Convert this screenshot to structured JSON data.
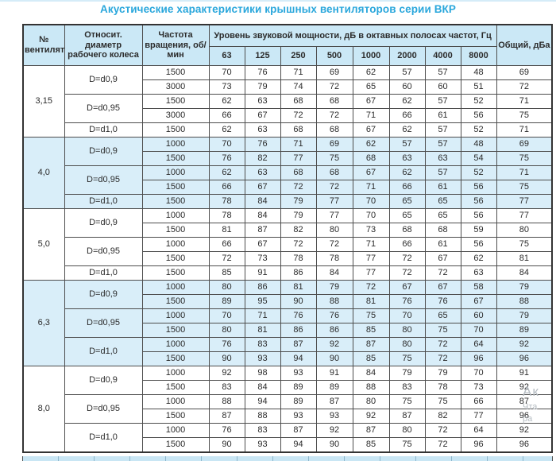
{
  "title": "Акустические характеристики крышных вентиляторов серии ВКР",
  "table": {
    "headers": {
      "fan": "№ вентилятора",
      "diameter": "Относит. диаметр рабочего колеса",
      "rpm": "Частота вращения, об/мин",
      "octave_group": "Уровень звуковой мощности, дБ в октавных полосах частот, Гц",
      "octaves": [
        "63",
        "125",
        "250",
        "500",
        "1000",
        "2000",
        "4000",
        "8000"
      ],
      "total": "Общий, дБа"
    },
    "sections": [
      {
        "fan": "3,15",
        "tint": false,
        "groups": [
          {
            "d": "D=d0,9",
            "rows": [
              {
                "rpm": "1500",
                "levels": [
                  70,
                  76,
                  71,
                  69,
                  62,
                  57,
                  57,
                  48
                ],
                "total": 69
              },
              {
                "rpm": "3000",
                "levels": [
                  73,
                  79,
                  74,
                  72,
                  65,
                  60,
                  60,
                  51
                ],
                "total": 72
              }
            ]
          },
          {
            "d": "D=d0,95",
            "rows": [
              {
                "rpm": "1500",
                "levels": [
                  62,
                  63,
                  68,
                  68,
                  67,
                  62,
                  57,
                  52
                ],
                "total": 71
              },
              {
                "rpm": "3000",
                "levels": [
                  66,
                  67,
                  72,
                  72,
                  71,
                  66,
                  61,
                  56
                ],
                "total": 75
              }
            ]
          },
          {
            "d": "D=d1,0",
            "rows": [
              {
                "rpm": "1500",
                "levels": [
                  62,
                  63,
                  68,
                  68,
                  67,
                  62,
                  57,
                  52
                ],
                "total": 71
              }
            ]
          }
        ]
      },
      {
        "fan": "4,0",
        "tint": true,
        "groups": [
          {
            "d": "D=d0,9",
            "rows": [
              {
                "rpm": "1000",
                "levels": [
                  70,
                  76,
                  71,
                  69,
                  62,
                  57,
                  57,
                  48
                ],
                "total": 69
              },
              {
                "rpm": "1500",
                "levels": [
                  76,
                  82,
                  77,
                  75,
                  68,
                  63,
                  63,
                  54
                ],
                "total": 75
              }
            ]
          },
          {
            "d": "D=d0,95",
            "rows": [
              {
                "rpm": "1000",
                "levels": [
                  62,
                  63,
                  68,
                  68,
                  67,
                  62,
                  57,
                  52
                ],
                "total": 71
              },
              {
                "rpm": "1500",
                "levels": [
                  66,
                  67,
                  72,
                  72,
                  71,
                  66,
                  61,
                  56
                ],
                "total": 75
              }
            ]
          },
          {
            "d": "D=d1,0",
            "rows": [
              {
                "rpm": "1500",
                "levels": [
                  78,
                  84,
                  79,
                  77,
                  70,
                  65,
                  65,
                  56
                ],
                "total": 77
              }
            ]
          }
        ]
      },
      {
        "fan": "5,0",
        "tint": false,
        "groups": [
          {
            "d": "D=d0,9",
            "rows": [
              {
                "rpm": "1000",
                "levels": [
                  78,
                  84,
                  79,
                  77,
                  70,
                  65,
                  65,
                  56
                ],
                "total": 77
              },
              {
                "rpm": "1500",
                "levels": [
                  81,
                  87,
                  82,
                  80,
                  73,
                  68,
                  68,
                  59
                ],
                "total": 80
              }
            ]
          },
          {
            "d": "D=d0,95",
            "rows": [
              {
                "rpm": "1000",
                "levels": [
                  66,
                  67,
                  72,
                  72,
                  71,
                  66,
                  61,
                  56
                ],
                "total": 75
              },
              {
                "rpm": "1500",
                "levels": [
                  72,
                  73,
                  78,
                  78,
                  77,
                  72,
                  67,
                  62
                ],
                "total": 81
              }
            ]
          },
          {
            "d": "D=d1,0",
            "rows": [
              {
                "rpm": "1500",
                "levels": [
                  85,
                  91,
                  86,
                  84,
                  77,
                  72,
                  72,
                  63
                ],
                "total": 84
              }
            ]
          }
        ]
      },
      {
        "fan": "6,3",
        "tint": true,
        "groups": [
          {
            "d": "D=d0,9",
            "rows": [
              {
                "rpm": "1000",
                "levels": [
                  80,
                  86,
                  81,
                  79,
                  72,
                  67,
                  67,
                  58
                ],
                "total": 79
              },
              {
                "rpm": "1500",
                "levels": [
                  89,
                  95,
                  90,
                  88,
                  81,
                  76,
                  76,
                  67
                ],
                "total": 88
              }
            ]
          },
          {
            "d": "D=d0,95",
            "rows": [
              {
                "rpm": "1000",
                "levels": [
                  70,
                  71,
                  76,
                  76,
                  75,
                  70,
                  65,
                  60
                ],
                "total": 79
              },
              {
                "rpm": "1500",
                "levels": [
                  80,
                  81,
                  86,
                  86,
                  85,
                  80,
                  75,
                  70
                ],
                "total": 89
              }
            ]
          },
          {
            "d": "D=d1,0",
            "rows": [
              {
                "rpm": "1000",
                "levels": [
                  76,
                  83,
                  87,
                  92,
                  87,
                  80,
                  72,
                  64
                ],
                "total": 92
              },
              {
                "rpm": "1500",
                "levels": [
                  90,
                  93,
                  94,
                  90,
                  85,
                  75,
                  72,
                  96
                ],
                "total": 96
              }
            ]
          }
        ]
      },
      {
        "fan": "8,0",
        "tint": false,
        "groups": [
          {
            "d": "D=d0,9",
            "rows": [
              {
                "rpm": "1000",
                "levels": [
                  92,
                  98,
                  93,
                  91,
                  84,
                  79,
                  79,
                  70
                ],
                "total": 91
              },
              {
                "rpm": "1500",
                "levels": [
                  83,
                  84,
                  89,
                  89,
                  88,
                  83,
                  78,
                  73
                ],
                "total": 92
              }
            ]
          },
          {
            "d": "D=d0,95",
            "rows": [
              {
                "rpm": "1000",
                "levels": [
                  88,
                  94,
                  89,
                  87,
                  80,
                  75,
                  75,
                  66
                ],
                "total": 87
              },
              {
                "rpm": "1500",
                "levels": [
                  87,
                  88,
                  93,
                  93,
                  92,
                  87,
                  82,
                  77
                ],
                "total": 96
              }
            ]
          },
          {
            "d": "D=d1,0",
            "rows": [
              {
                "rpm": "1000",
                "levels": [
                  76,
                  83,
                  87,
                  92,
                  87,
                  80,
                  72,
                  64
                ],
                "total": 92
              },
              {
                "rpm": "1500",
                "levels": [
                  90,
                  93,
                  94,
                  90,
                  85,
                  75,
                  72,
                  96
                ],
                "total": 96
              }
            ]
          }
        ]
      }
    ]
  },
  "watermark": {
    "line1": "Ак",
    "line2": "Чта",
    "line3": "ра"
  },
  "colors": {
    "title": "#2aa7dc",
    "header_bg": "#cbe8f6",
    "tint_row_bg": "#d9eef9",
    "border": "#4d4d4d"
  }
}
